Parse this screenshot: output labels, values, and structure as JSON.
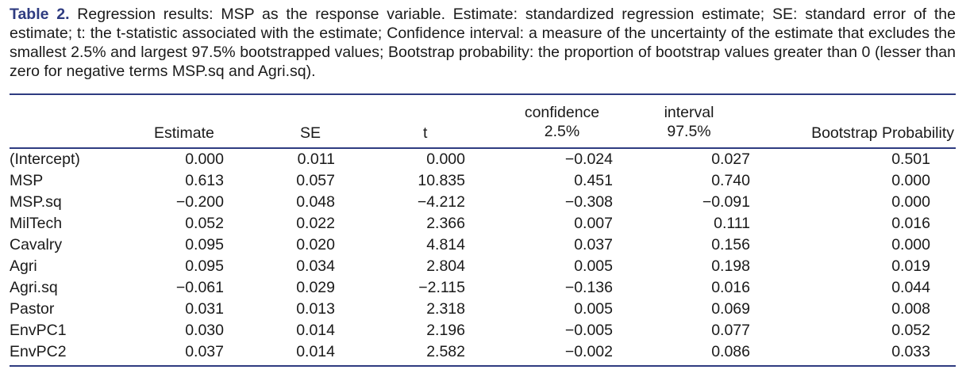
{
  "caption": {
    "label": "Table 2.",
    "text": " Regression results: MSP as the response variable. Estimate: standardized regression estimate; SE: standard error of the estimate; t: the t-statistic associated with the estimate; Confidence interval: a measure of the uncertainty of the estimate that excludes the smallest 2.5% and largest 97.5% bootstrapped values; Bootstrap probability: the proportion of bootstrap values greater than 0 (lesser than zero for negative terms MSP.sq and Agri.sq)."
  },
  "table": {
    "headers": {
      "estimate": "Estimate",
      "se": "SE",
      "t": "t",
      "ci_lower_top": "confidence",
      "ci_lower": "2.5%",
      "ci_upper_top": "interval",
      "ci_upper": "97.5%",
      "bootstrap": "Bootstrap Probability"
    },
    "rows": [
      {
        "term": "(Intercept)",
        "estimate": "0.000",
        "se": "0.011",
        "t": "0.000",
        "lower": "−0.024",
        "upper": "0.027",
        "bp": "0.501"
      },
      {
        "term": "MSP",
        "estimate": "0.613",
        "se": "0.057",
        "t": "10.835",
        "lower": "0.451",
        "upper": "0.740",
        "bp": "0.000"
      },
      {
        "term": "MSP.sq",
        "estimate": "−0.200",
        "se": "0.048",
        "t": "−4.212",
        "lower": "−0.308",
        "upper": "−0.091",
        "bp": "0.000"
      },
      {
        "term": "MilTech",
        "estimate": "0.052",
        "se": "0.022",
        "t": "2.366",
        "lower": "0.007",
        "upper": "0.111",
        "bp": "0.016"
      },
      {
        "term": "Cavalry",
        "estimate": "0.095",
        "se": "0.020",
        "t": "4.814",
        "lower": "0.037",
        "upper": "0.156",
        "bp": "0.000"
      },
      {
        "term": "Agri",
        "estimate": "0.095",
        "se": "0.034",
        "t": "2.804",
        "lower": "0.005",
        "upper": "0.198",
        "bp": "0.019"
      },
      {
        "term": "Agri.sq",
        "estimate": "−0.061",
        "se": "0.029",
        "t": "−2.115",
        "lower": "−0.136",
        "upper": "0.016",
        "bp": "0.044"
      },
      {
        "term": "Pastor",
        "estimate": "0.031",
        "se": "0.013",
        "t": "2.318",
        "lower": "0.005",
        "upper": "0.069",
        "bp": "0.008"
      },
      {
        "term": "EnvPC1",
        "estimate": "0.030",
        "se": "0.014",
        "t": "2.196",
        "lower": "−0.005",
        "upper": "0.077",
        "bp": "0.052"
      },
      {
        "term": "EnvPC2",
        "estimate": "0.037",
        "se": "0.014",
        "t": "2.582",
        "lower": "−0.002",
        "upper": "0.086",
        "bp": "0.033"
      }
    ]
  }
}
